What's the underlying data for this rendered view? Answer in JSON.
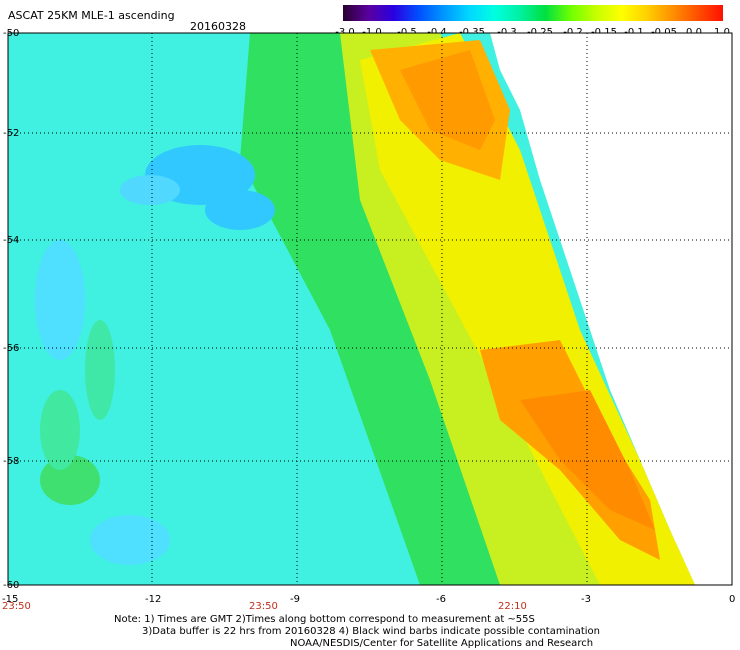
{
  "header": {
    "title": "ASCAT 25KM MLE-1 ascending",
    "date": "20160328"
  },
  "colorbar": {
    "labels": [
      "-3.0",
      "-1.0",
      "-0.5",
      "-0.4",
      "-0.35",
      "-0.3",
      "-0.25",
      "-0.2",
      "-0.15",
      "-0.1",
      "-0.05",
      "0.0",
      "1.0"
    ],
    "colors": [
      "#2a0030",
      "#5a00a0",
      "#2a00e0",
      "#0050ff",
      "#0098ff",
      "#00d8ff",
      "#00ffe0",
      "#00f0a0",
      "#00e040",
      "#70ff00",
      "#c8ff00",
      "#ffff00",
      "#ffd000",
      "#ff9000",
      "#ff5000",
      "#ff1000"
    ]
  },
  "axes": {
    "x_ticks": [
      "-15",
      "-12",
      "-9",
      "-6",
      "-3",
      "0"
    ],
    "y_ticks": [
      "-50",
      "-52",
      "-54",
      "-56",
      "-58",
      "-60"
    ],
    "time_labels": [
      "23:50",
      "23:50",
      "22:10"
    ]
  },
  "legend_colors": {
    "cyan": "#40f0f0",
    "light_cyan": "#80ffff",
    "blue": "#30c0ff",
    "green": "#40e050",
    "light_green": "#90f040",
    "yellow": "#f0f000",
    "orange": "#ffa000",
    "time_label": "#c0301c"
  },
  "notes": {
    "line1": "Note: 1) Times are GMT 2)Times along bottom correspond to measurement at ~55S",
    "line2": "3)Data buffer is 22 hrs from 20160328 4) Black wind barbs indicate possible contamination",
    "line3": "NOAA/NESDIS/Center for Satellite Applications and Research"
  }
}
